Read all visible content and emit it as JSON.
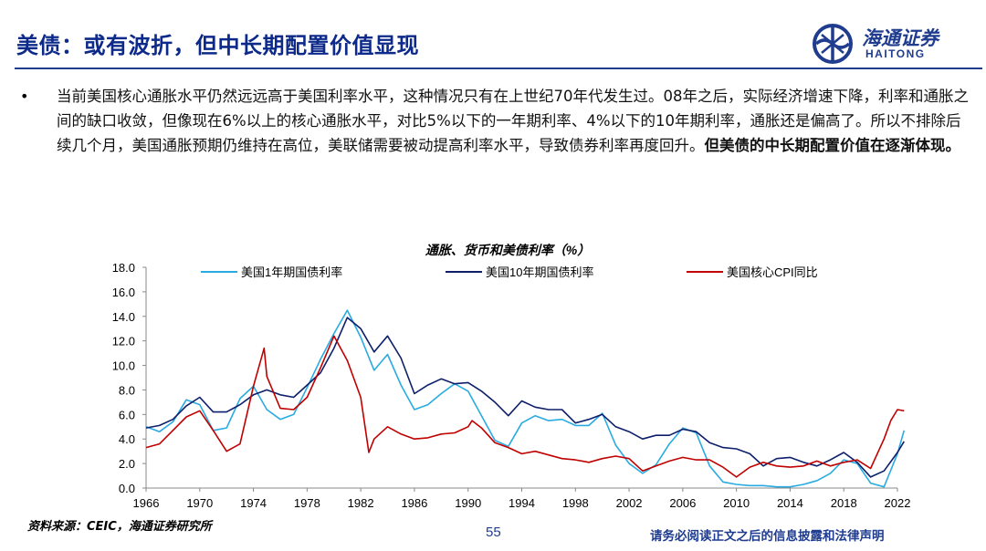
{
  "header": {
    "title": "美债：或有波折，但中长期配置价值显现",
    "logo_cn": "海通证券",
    "logo_en": "HAITONG"
  },
  "body": {
    "bullet": "•",
    "text_normal": "当前美国核心通胀水平仍然远远高于美国利率水平，这种情况只有在上世纪70年代发生过。08年之后，实际经济增速下降，利率和通胀之间的缺口收敛，但像现在6%以上的核心通胀水平，对比5%以下的一年期利率、4%以下的10年期利率，通胀还是偏高了。所以不排除后续几个月，美国通胀预期仍维持在高位，美联储需要被动提高利率水平，导致债券利率再度回升。",
    "text_bold": "但美债的中长期配置价值在逐渐体现。"
  },
  "footer": {
    "source": "资料来源：CEIC，海通证券研究所",
    "page": "55",
    "disclaimer": "请务必阅读正文之后的信息披露和法律声明"
  },
  "colors": {
    "title": "#0d2a8a",
    "series_1y": "#29abe2",
    "series_10y": "#0d1f6b",
    "series_cpi": "#c00000"
  },
  "chart_data": {
    "type": "line",
    "title": "通胀、货币和美债利率（%）",
    "xlabel": "",
    "ylabel": "",
    "ylim": [
      0,
      18
    ],
    "xlim": [
      1966,
      2022
    ],
    "x_ticks": [
      "1966",
      "1970",
      "1974",
      "1978",
      "1982",
      "1986",
      "1990",
      "1994",
      "1998",
      "2002",
      "2006",
      "2010",
      "2014",
      "2018",
      "2022"
    ],
    "y_ticks": [
      "0.0",
      "2.0",
      "4.0",
      "6.0",
      "8.0",
      "10.0",
      "12.0",
      "14.0",
      "16.0",
      "18.0"
    ],
    "legend_position": "top",
    "series": [
      {
        "name": "美国1年期国债利率",
        "color": "#29abe2",
        "points": [
          [
            1966,
            5.0
          ],
          [
            1967,
            4.6
          ],
          [
            1968,
            5.4
          ],
          [
            1969,
            7.2
          ],
          [
            1970,
            6.8
          ],
          [
            1971,
            4.7
          ],
          [
            1972,
            4.9
          ],
          [
            1973,
            7.3
          ],
          [
            1974,
            8.3
          ],
          [
            1975,
            6.4
          ],
          [
            1976,
            5.6
          ],
          [
            1977,
            6.0
          ],
          [
            1978,
            8.2
          ],
          [
            1979,
            10.5
          ],
          [
            1980,
            12.6
          ],
          [
            1981,
            14.5
          ],
          [
            1982,
            12.3
          ],
          [
            1983,
            9.6
          ],
          [
            1984,
            10.9
          ],
          [
            1985,
            8.4
          ],
          [
            1986,
            6.4
          ],
          [
            1987,
            6.8
          ],
          [
            1988,
            7.7
          ],
          [
            1989,
            8.5
          ],
          [
            1990,
            7.9
          ],
          [
            1991,
            5.9
          ],
          [
            1992,
            3.9
          ],
          [
            1993,
            3.4
          ],
          [
            1994,
            5.3
          ],
          [
            1995,
            5.9
          ],
          [
            1996,
            5.5
          ],
          [
            1997,
            5.6
          ],
          [
            1998,
            5.1
          ],
          [
            1999,
            5.1
          ],
          [
            2000,
            6.1
          ],
          [
            2001,
            3.5
          ],
          [
            2002,
            2.0
          ],
          [
            2003,
            1.2
          ],
          [
            2004,
            1.9
          ],
          [
            2005,
            3.6
          ],
          [
            2006,
            4.9
          ],
          [
            2007,
            4.5
          ],
          [
            2008,
            1.8
          ],
          [
            2009,
            0.5
          ],
          [
            2010,
            0.3
          ],
          [
            2011,
            0.2
          ],
          [
            2012,
            0.2
          ],
          [
            2013,
            0.1
          ],
          [
            2014,
            0.1
          ],
          [
            2015,
            0.3
          ],
          [
            2016,
            0.6
          ],
          [
            2017,
            1.2
          ],
          [
            2018,
            2.3
          ],
          [
            2019,
            2.0
          ],
          [
            2020,
            0.4
          ],
          [
            2021,
            0.1
          ],
          [
            2022,
            2.8
          ],
          [
            2022.5,
            4.7
          ]
        ]
      },
      {
        "name": "美国10年期国债利率",
        "color": "#0d1f6b",
        "points": [
          [
            1966,
            4.9
          ],
          [
            1967,
            5.1
          ],
          [
            1968,
            5.6
          ],
          [
            1969,
            6.7
          ],
          [
            1970,
            7.4
          ],
          [
            1971,
            6.2
          ],
          [
            1972,
            6.2
          ],
          [
            1973,
            6.8
          ],
          [
            1974,
            7.6
          ],
          [
            1975,
            8.0
          ],
          [
            1976,
            7.6
          ],
          [
            1977,
            7.4
          ],
          [
            1978,
            8.4
          ],
          [
            1979,
            9.4
          ],
          [
            1980,
            11.4
          ],
          [
            1981,
            13.9
          ],
          [
            1982,
            13.0
          ],
          [
            1983,
            11.1
          ],
          [
            1984,
            12.4
          ],
          [
            1985,
            10.6
          ],
          [
            1986,
            7.7
          ],
          [
            1987,
            8.4
          ],
          [
            1988,
            8.9
          ],
          [
            1989,
            8.5
          ],
          [
            1990,
            8.6
          ],
          [
            1991,
            7.9
          ],
          [
            1992,
            7.0
          ],
          [
            1993,
            5.9
          ],
          [
            1994,
            7.1
          ],
          [
            1995,
            6.6
          ],
          [
            1996,
            6.4
          ],
          [
            1997,
            6.4
          ],
          [
            1998,
            5.3
          ],
          [
            1999,
            5.6
          ],
          [
            2000,
            6.0
          ],
          [
            2001,
            5.0
          ],
          [
            2002,
            4.6
          ],
          [
            2003,
            4.0
          ],
          [
            2004,
            4.3
          ],
          [
            2005,
            4.3
          ],
          [
            2006,
            4.8
          ],
          [
            2007,
            4.6
          ],
          [
            2008,
            3.7
          ],
          [
            2009,
            3.3
          ],
          [
            2010,
            3.2
          ],
          [
            2011,
            2.8
          ],
          [
            2012,
            1.8
          ],
          [
            2013,
            2.4
          ],
          [
            2014,
            2.5
          ],
          [
            2015,
            2.1
          ],
          [
            2016,
            1.8
          ],
          [
            2017,
            2.3
          ],
          [
            2018,
            2.9
          ],
          [
            2019,
            2.1
          ],
          [
            2020,
            0.9
          ],
          [
            2021,
            1.4
          ],
          [
            2022,
            2.9
          ],
          [
            2022.5,
            3.8
          ]
        ]
      },
      {
        "name": "美国核心CPI同比",
        "color": "#c00000",
        "points": [
          [
            1966,
            3.3
          ],
          [
            1967,
            3.6
          ],
          [
            1968,
            4.7
          ],
          [
            1969,
            5.8
          ],
          [
            1970,
            6.3
          ],
          [
            1971,
            4.7
          ],
          [
            1972,
            3.0
          ],
          [
            1973,
            3.6
          ],
          [
            1974,
            8.3
          ],
          [
            1974.8,
            11.4
          ],
          [
            1975,
            9.1
          ],
          [
            1976,
            6.5
          ],
          [
            1977,
            6.4
          ],
          [
            1978,
            7.4
          ],
          [
            1979,
            9.8
          ],
          [
            1980,
            12.4
          ],
          [
            1981,
            10.4
          ],
          [
            1982,
            7.4
          ],
          [
            1982.6,
            2.9
          ],
          [
            1983,
            4.0
          ],
          [
            1984,
            5.0
          ],
          [
            1985,
            4.4
          ],
          [
            1986,
            4.0
          ],
          [
            1987,
            4.1
          ],
          [
            1988,
            4.4
          ],
          [
            1989,
            4.5
          ],
          [
            1990,
            5.0
          ],
          [
            1990.3,
            5.5
          ],
          [
            1991,
            4.9
          ],
          [
            1992,
            3.7
          ],
          [
            1993,
            3.3
          ],
          [
            1994,
            2.8
          ],
          [
            1995,
            3.0
          ],
          [
            1996,
            2.7
          ],
          [
            1997,
            2.4
          ],
          [
            1998,
            2.3
          ],
          [
            1999,
            2.1
          ],
          [
            2000,
            2.4
          ],
          [
            2001,
            2.6
          ],
          [
            2002,
            2.4
          ],
          [
            2003,
            1.4
          ],
          [
            2004,
            1.8
          ],
          [
            2005,
            2.2
          ],
          [
            2006,
            2.5
          ],
          [
            2007,
            2.3
          ],
          [
            2008,
            2.3
          ],
          [
            2009,
            1.7
          ],
          [
            2010,
            0.9
          ],
          [
            2011,
            1.7
          ],
          [
            2012,
            2.1
          ],
          [
            2013,
            1.8
          ],
          [
            2014,
            1.7
          ],
          [
            2015,
            1.8
          ],
          [
            2016,
            2.2
          ],
          [
            2017,
            1.8
          ],
          [
            2018,
            2.1
          ],
          [
            2019,
            2.3
          ],
          [
            2020,
            1.6
          ],
          [
            2021,
            4.0
          ],
          [
            2021.5,
            5.5
          ],
          [
            2022,
            6.4
          ],
          [
            2022.5,
            6.3
          ]
        ]
      }
    ]
  }
}
